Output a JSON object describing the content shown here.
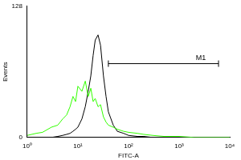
{
  "chart_data": {
    "type": "line",
    "x_label": "FITC-A",
    "y_label": "Events",
    "log": "x",
    "grid": false,
    "x": [
      1,
      1.5,
      2,
      3,
      4,
      5,
      6,
      7,
      8,
      9,
      10,
      12,
      14,
      16,
      18,
      20,
      22,
      25,
      28,
      32,
      36,
      40,
      50,
      60,
      80,
      100,
      150,
      200,
      300,
      500,
      1000,
      2000,
      5000,
      10000
    ],
    "series": [
      {
        "color": "#33ff00",
        "values": [
          2,
          4,
          5,
          10,
          12,
          18,
          22,
          30,
          40,
          35,
          50,
          45,
          55,
          40,
          48,
          35,
          38,
          30,
          32,
          20,
          15,
          12,
          10,
          8,
          6,
          5,
          4,
          3,
          2,
          1,
          1,
          0,
          0,
          0
        ]
      },
      {
        "color": "#000000",
        "values": [
          0,
          0,
          0,
          0,
          1,
          2,
          3,
          4,
          6,
          8,
          10,
          18,
          30,
          45,
          60,
          80,
          95,
          100,
          90,
          60,
          40,
          25,
          12,
          6,
          4,
          2,
          1,
          1,
          0,
          0,
          0,
          0,
          0,
          0
        ]
      }
    ],
    "xlim": [
      1,
      10000
    ],
    "xticks": [
      {
        "value": 1,
        "label": "10⁰"
      },
      {
        "value": 10,
        "label": "10¹"
      },
      {
        "value": 100,
        "label": "10²"
      },
      {
        "value": 1000,
        "label": "10³"
      },
      {
        "value": 10000,
        "label": "10⁴"
      }
    ],
    "ylim": [
      0,
      128
    ],
    "yticks": [
      0,
      128
    ],
    "annotations": [
      {
        "text": "M1",
        "x": [
          40,
          6000
        ],
        "y": 72
      }
    ]
  }
}
